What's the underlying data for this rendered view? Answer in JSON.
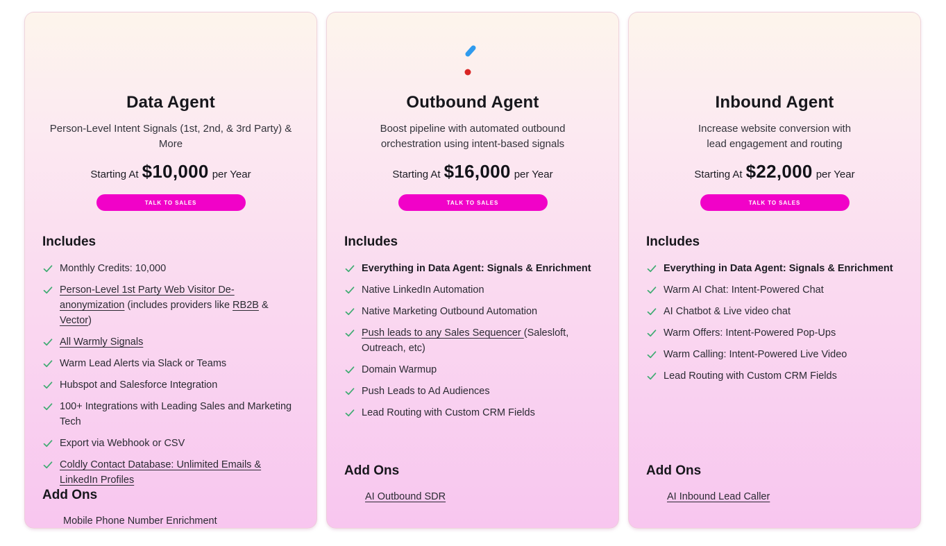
{
  "colors": {
    "cta_background": "#F102C8",
    "check_green": "#3DAB71",
    "sparkle_magenta": "#F23BD4",
    "card_gradient_top": "#FDF5EC",
    "card_gradient_bottom": "#F8C6EF"
  },
  "cards": [
    {
      "icon": "molecule-icon",
      "title": "Data Agent",
      "description_lines": [
        "Person-Level Intent Signals (1st, 2nd, & 3rd Party) & More"
      ],
      "price_prefix": "Starting At",
      "price_amount": "$10,000",
      "price_suffix": "per Year",
      "cta_label": "TALK TO SALES",
      "includes_heading": "Includes",
      "includes": [
        [
          {
            "t": "Monthly Credits: 10,000"
          }
        ],
        [
          {
            "t": "Person-Level 1st Party Web Visitor De-anonymization",
            "u": true
          },
          {
            "t": " (includes providers like "
          },
          {
            "t": "RB2B",
            "u": true
          },
          {
            "t": " & "
          },
          {
            "t": "Vector",
            "u": true
          },
          {
            "t": ")"
          }
        ],
        [
          {
            "t": "All Warmly Signals",
            "u": true
          }
        ],
        [
          {
            "t": "Warm Lead Alerts via Slack or Teams"
          }
        ],
        [
          {
            "t": "Hubspot and Salesforce Integration"
          }
        ],
        [
          {
            "t": "100+ Integrations with Leading Sales and Marketing Tech"
          }
        ],
        [
          {
            "t": "Export via Webhook or CSV"
          }
        ],
        [
          {
            "t": "Coldly Contact Database: Unlimited Emails & LinkedIn Profiles",
            "u": true
          }
        ]
      ],
      "addons_heading": "Add Ons",
      "addons": [
        {
          "t": "Mobile Phone Number Enrichment"
        }
      ]
    },
    {
      "icon": "spark-s-icon",
      "title": "Outbound Agent",
      "description_lines": [
        "Boost pipeline with automated outbound",
        "orchestration using intent-based signals"
      ],
      "price_prefix": "Starting At",
      "price_amount": "$16,000",
      "price_suffix": "per Year",
      "cta_label": "TALK TO SALES",
      "includes_heading": "Includes",
      "includes": [
        [
          {
            "t": "Everything in Data Agent: Signals & Enrichment",
            "b": true
          }
        ],
        [
          {
            "t": "Native LinkedIn Automation"
          }
        ],
        [
          {
            "t": "Native Marketing Outbound Automation"
          }
        ],
        [
          {
            "t": "Push leads to any Sales Sequencer ",
            "u": true
          },
          {
            "t": "(Salesloft, Outreach, etc)"
          }
        ],
        [
          {
            "t": "Domain Warmup"
          }
        ],
        [
          {
            "t": "Push Leads to Ad Audiences"
          }
        ],
        [
          {
            "t": "Lead Routing with Custom CRM Fields"
          }
        ]
      ],
      "addons_heading": "Add Ons",
      "addons": [
        {
          "t": "AI Outbound SDR",
          "u": true
        }
      ]
    },
    {
      "icon": "plus-cross-icon",
      "title": "Inbound Agent",
      "description_lines": [
        "Increase website conversion with",
        "lead engagement and routing"
      ],
      "price_prefix": "Starting At",
      "price_amount": "$22,000",
      "price_suffix": "per Year",
      "cta_label": "TALK TO SALES",
      "includes_heading": "Includes",
      "includes": [
        [
          {
            "t": "Everything in Data Agent: Signals & Enrichment",
            "b": true
          }
        ],
        [
          {
            "t": "Warm AI Chat: Intent-Powered Chat"
          }
        ],
        [
          {
            "t": "AI Chatbot & Live video chat"
          }
        ],
        [
          {
            "t": "Warm Offers: Intent-Powered Pop-Ups"
          }
        ],
        [
          {
            "t": "Warm Calling: Intent-Powered Live Video"
          }
        ],
        [
          {
            "t": "Lead Routing with Custom CRM Fields"
          }
        ]
      ],
      "addons_heading": "Add Ons",
      "addons": [
        {
          "t": "AI Inbound Lead Caller",
          "u": true
        }
      ]
    }
  ]
}
